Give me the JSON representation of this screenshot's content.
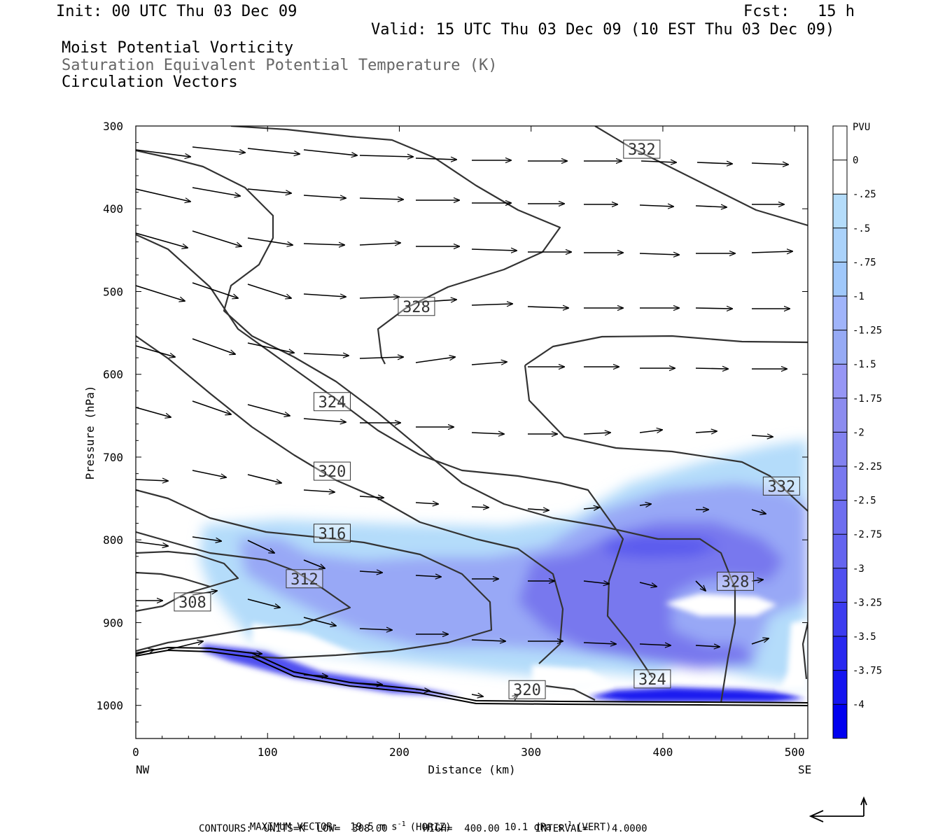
{
  "header": {
    "init": "Init: 00 UTC Thu 03 Dec 09",
    "fcst": "Fcst:   15 h",
    "valid": "Valid: 15 UTC Thu 03 Dec 09 (10 EST Thu 03 Dec 09)",
    "line1": "Moist Potential Vorticity",
    "line2": "Saturation Equivalent Potential Temperature (K)",
    "line3": "Circulation Vectors"
  },
  "footer": {
    "line1_a": "MAXIMUM VECTOR:  19.5 m s",
    "line1_b": "(HORIZ)",
    "line1_c": "10.1 dPa s",
    "line1_d": "(VERT)",
    "sup": "-1",
    "line2": "CONTOURS:  UNITS=K  LOW=  308.00      HIGH=  400.00      INTERVAL=    4.0000"
  },
  "colors": {
    "contour": "#333333",
    "vector": "#000000",
    "fill_light": "#b4dcfa",
    "fill_mid": "#8c8cf0",
    "fill_dark": "#3c3cf0"
  },
  "chart_data": {
    "type": "cross-section",
    "xlabel": "Distance (km)",
    "ylabel": "Pressure (hPa)",
    "x_end_left": "NW",
    "x_end_right": "SE",
    "xlim": [
      0,
      510
    ],
    "ylim": [
      1040,
      300
    ],
    "xticks": [
      0,
      100,
      200,
      300,
      400,
      500
    ],
    "yticks": [
      300,
      400,
      500,
      600,
      700,
      800,
      900,
      1000
    ],
    "colorbar": {
      "unit": "PVU",
      "labels": [
        "0",
        "-.25",
        "-.5",
        "-.75",
        "-1",
        "-1.25",
        "-1.5",
        "-1.75",
        "-2",
        "-2.25",
        "-2.5",
        "-2.75",
        "-3",
        "-3.25",
        "-3.5",
        "-3.75",
        "-4"
      ],
      "colors": [
        "#ffffff",
        "#ffffff",
        "#b4dcfa",
        "#aad2fa",
        "#a0c8fa",
        "#a0b4fa",
        "#96aaf5",
        "#9696f5",
        "#8c8cf0",
        "#8282f0",
        "#7878f0",
        "#6e6ef0",
        "#6464f0",
        "#5050f0",
        "#3c3cf0",
        "#2828f0",
        "#1414f0",
        "#0000f0"
      ]
    },
    "contour_labels": [
      {
        "value": "308",
        "x": 43,
        "p": 875
      },
      {
        "value": "312",
        "x": 128,
        "p": 847
      },
      {
        "value": "316",
        "x": 149,
        "p": 792
      },
      {
        "value": "320",
        "x": 149,
        "p": 717
      },
      {
        "value": "324",
        "x": 149,
        "p": 633
      },
      {
        "value": "328",
        "x": 213,
        "p": 518
      },
      {
        "value": "332",
        "x": 384,
        "p": 328
      },
      {
        "value": "332",
        "x": 490,
        "p": 735
      },
      {
        "value": "328",
        "x": 455,
        "p": 850
      },
      {
        "value": "324",
        "x": 392,
        "p": 968
      },
      {
        "value": "320",
        "x": 297,
        "p": 981
      }
    ]
  }
}
